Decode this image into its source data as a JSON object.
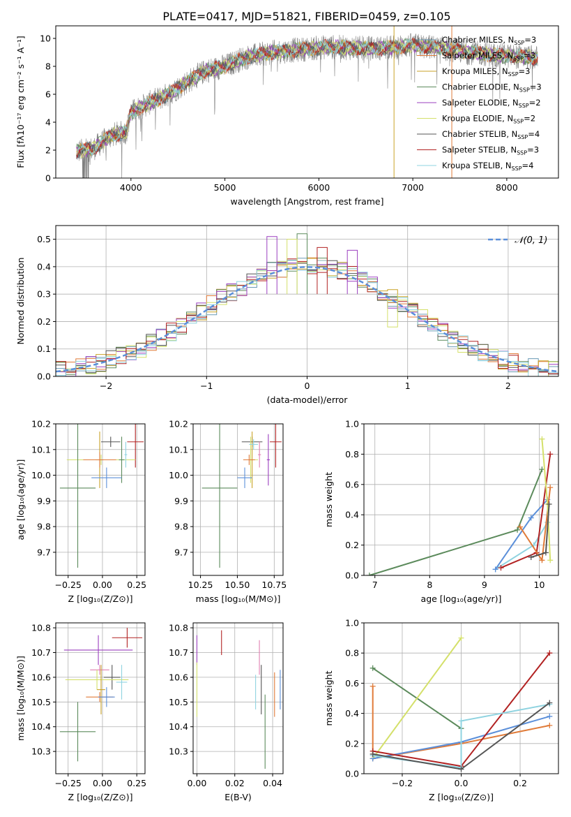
{
  "figure": {
    "title": "PLATE=0417, MJD=51821, FIBERID=0459, z=0.105"
  },
  "chart_data": [
    {
      "id": "spectrum",
      "type": "line",
      "xlabel": "wavelength [Angstrom, rest frame]",
      "ylabel": "Flux [fλ10⁻¹⁷ erg cm⁻² s⁻¹ A⁻¹]",
      "xlim": [
        3200,
        8550
      ],
      "ylim": [
        0,
        10.9
      ],
      "xticks": [
        4000,
        5000,
        6000,
        7000,
        8000
      ],
      "yticks": [
        0,
        2,
        4,
        6,
        8,
        10
      ],
      "legend_position": "top-right",
      "data_range": [
        3420,
        8330
      ],
      "continuum": {
        "x": [
          3420,
          3600,
          3800,
          3950,
          4000,
          4200,
          4400,
          4600,
          4800,
          5000,
          5200,
          5500,
          5800,
          6100,
          6400,
          6700,
          7000,
          7300,
          7600,
          7900,
          8100,
          8330
        ],
        "y": [
          1.9,
          2.1,
          3.1,
          3.3,
          4.7,
          5.4,
          6.0,
          6.9,
          7.7,
          8.0,
          8.6,
          9.0,
          9.2,
          9.4,
          9.3,
          9.3,
          9.5,
          9.3,
          9.0,
          8.8,
          8.7,
          8.6
        ]
      },
      "series": [
        {
          "name": "Chabrier MILES, N_SSP=3",
          "label_main": "Chabrier MILES, N",
          "label_sub": "SSP",
          "label_tail": "=3",
          "color": "#6a9ab5"
        },
        {
          "name": "Salpeter MILES, N_SSP=3",
          "label_main": "Salpeter MILES, N",
          "label_sub": "SSP",
          "label_tail": "=3",
          "color": "#e07b39"
        },
        {
          "name": "Kroupa MILES, N_SSP=3",
          "label_main": "Kroupa MILES, N",
          "label_sub": "SSP",
          "label_tail": "=3",
          "color": "#c9a227"
        },
        {
          "name": "Chabrier ELODIE, N_SSP=3",
          "label_main": "Chabrier ELODIE, N",
          "label_sub": "SSP",
          "label_tail": "=3",
          "color": "#5b8a5b"
        },
        {
          "name": "Salpeter ELODIE, N_SSP=2",
          "label_main": "Salpeter ELODIE, N",
          "label_sub": "SSP",
          "label_tail": "=2",
          "color": "#9b3fbf"
        },
        {
          "name": "Kroupa ELODIE, N_SSP=2",
          "label_main": "Kroupa ELODIE, N",
          "label_sub": "SSP",
          "label_tail": "=2",
          "color": "#d4e06a"
        },
        {
          "name": "Chabrier STELIB, N_SSP=4",
          "label_main": "Chabrier STELIB, N",
          "label_sub": "SSP",
          "label_tail": "=4",
          "color": "#555555"
        },
        {
          "name": "Salpeter STELIB, N_SSP=3",
          "label_main": "Salpeter STELIB, N",
          "label_sub": "SSP",
          "label_tail": "=3",
          "color": "#b22222"
        },
        {
          "name": "Kroupa STELIB, N_SSP=4",
          "label_main": "Kroupa STELIB, N",
          "label_sub": "SSP",
          "label_tail": "=4",
          "color": "#8fd3e0"
        }
      ]
    },
    {
      "id": "residuals",
      "type": "histogram",
      "xlabel": "(data-model)/error",
      "ylabel": "Normed distribution",
      "xlim": [
        -2.5,
        2.5
      ],
      "ylim": [
        0,
        0.55
      ],
      "xticks": [
        -2,
        -1,
        0,
        1,
        2
      ],
      "yticks": [
        0.0,
        0.1,
        0.2,
        0.3,
        0.4,
        0.5
      ],
      "grid": true,
      "bin_width": 0.1,
      "reference_curve": {
        "name": "N(0,1)",
        "label": "𝒩(0, 1)",
        "color": "#5b8fd9",
        "style": "dashed"
      },
      "legend_position": "top-right",
      "series_colors": [
        "#6a9ab5",
        "#e07b39",
        "#c9a227",
        "#5b8a5b",
        "#9b3fbf",
        "#d4e06a",
        "#555555",
        "#b22222",
        "#8fd3e0"
      ],
      "peak_bins": [
        {
          "x": -0.05,
          "y": 0.52,
          "color": "#5b8a5b"
        },
        {
          "x": -0.35,
          "y": 0.51,
          "color": "#9b3fbf"
        },
        {
          "x": -0.15,
          "y": 0.5,
          "color": "#d4e06a"
        },
        {
          "x": 0.15,
          "y": 0.47,
          "color": "#b22222"
        },
        {
          "x": 0.45,
          "y": 0.46,
          "color": "#9b3fbf"
        },
        {
          "x": 0.85,
          "y": 0.18,
          "color": "#d4e06a"
        }
      ]
    },
    {
      "id": "z-age",
      "type": "errorbar",
      "xlabel": "Z [log₁₀(Z/Z⊙)]",
      "ylabel": "age  [log₁₀(age/yr)]",
      "xlim": [
        -0.34,
        0.31
      ],
      "ylim": [
        9.61,
        10.2
      ],
      "xticks": [
        -0.25,
        0.0,
        0.25
      ],
      "xticklabels": [
        "−0.25",
        "0.00",
        "0.25"
      ],
      "yticks": [
        9.7,
        9.8,
        9.9,
        10.0,
        10.1,
        10.2
      ],
      "grid": true,
      "points": [
        {
          "x": 0.06,
          "xerr": 0.07,
          "y": 10.13,
          "yerr": 0.02,
          "color": "#555555"
        },
        {
          "x": 0.24,
          "xerr": 0.06,
          "y": 10.13,
          "yerr": 0.1,
          "color": "#b22222"
        },
        {
          "x": -0.02,
          "xerr": 0.03,
          "y": 10.06,
          "yerr": 0.11,
          "color": "#c9a227"
        },
        {
          "x": -0.01,
          "xerr": 0.25,
          "y": 10.06,
          "yerr": 0.02,
          "color": "#d4e06a"
        },
        {
          "x": -0.02,
          "xerr": 0.12,
          "y": 10.06,
          "yerr": 0.03,
          "color": "#e07b39"
        },
        {
          "x": 0.14,
          "xerr": 0.02,
          "y": 10.06,
          "yerr": 0.09,
          "color": "#5b8a5b"
        },
        {
          "x": 0.03,
          "xerr": 0.11,
          "y": 9.99,
          "yerr": 0.04,
          "color": "#5b8fd9"
        },
        {
          "x": 0.17,
          "xerr": 0.01,
          "y": 10.08,
          "yerr": 0.05,
          "color": "#8fd3e0"
        },
        {
          "x": -0.18,
          "xerr": 0.13,
          "y": 9.95,
          "yerr": 0.31,
          "color": "#5b8a5b"
        }
      ]
    },
    {
      "id": "mass-age",
      "type": "errorbar",
      "xlabel": "mass [log₁₀(M/M⊙)]",
      "ylabel": "",
      "xlim": [
        10.2,
        10.81
      ],
      "ylim": [
        9.61,
        10.2
      ],
      "xticks": [
        10.25,
        10.5,
        10.75
      ],
      "xticklabels": [
        "10.25",
        "10.50",
        "10.75"
      ],
      "yticks": [
        9.7,
        9.8,
        9.9,
        10.0,
        10.1,
        10.2
      ],
      "grid": true,
      "points": [
        {
          "x": 10.6,
          "xerr": 0.07,
          "y": 10.13,
          "yerr": 0.02,
          "color": "#555555"
        },
        {
          "x": 10.76,
          "xerr": 0.04,
          "y": 10.13,
          "yerr": 0.1,
          "color": "#b22222"
        },
        {
          "x": 10.6,
          "xerr": 0.02,
          "y": 10.06,
          "yerr": 0.11,
          "color": "#c9a227"
        },
        {
          "x": 10.59,
          "xerr": 0.05,
          "y": 10.06,
          "yerr": 0.09,
          "color": "#d4e06a"
        },
        {
          "x": 10.71,
          "xerr": 0.01,
          "y": 10.06,
          "yerr": 0.1,
          "color": "#9b3fbf"
        },
        {
          "x": 10.58,
          "xerr": 0.04,
          "y": 10.06,
          "yerr": 0.02,
          "color": "#e07b39"
        },
        {
          "x": 10.61,
          "xerr": 0.03,
          "y": 10.12,
          "yerr": 0.02,
          "color": "#8fd3e0"
        },
        {
          "x": 10.65,
          "xerr": 0.01,
          "y": 10.08,
          "yerr": 0.05,
          "color": "#e07fb0"
        },
        {
          "x": 10.55,
          "xerr": 0.05,
          "y": 9.99,
          "yerr": 0.04,
          "color": "#5b8fd9"
        },
        {
          "x": 10.38,
          "xerr": 0.12,
          "y": 9.95,
          "yerr": 0.31,
          "color": "#5b8a5b"
        }
      ]
    },
    {
      "id": "age-weight",
      "type": "line",
      "xlabel": "age  [log₁₀(age/yr)]",
      "ylabel": "mass weight",
      "xlim": [
        6.8,
        10.35
      ],
      "ylim": [
        0,
        1.0
      ],
      "xticks": [
        7,
        8,
        9,
        10
      ],
      "yticks": [
        0.0,
        0.2,
        0.4,
        0.6,
        0.8,
        1.0
      ],
      "grid": true,
      "series": [
        {
          "color": "#5b8a5b",
          "x": [
            6.9,
            9.6,
            10.05
          ],
          "y": [
            0.0,
            0.3,
            0.7
          ]
        },
        {
          "color": "#8fd3e0",
          "x": [
            9.2,
            9.9,
            10.15
          ],
          "y": [
            0.04,
            0.2,
            0.35
          ]
        },
        {
          "color": "#5b8fd9",
          "x": [
            9.2,
            9.85,
            10.15
          ],
          "y": [
            0.04,
            0.38,
            0.5
          ]
        },
        {
          "color": "#b22222",
          "x": [
            9.3,
            9.95,
            10.2
          ],
          "y": [
            0.05,
            0.15,
            0.8
          ]
        },
        {
          "color": "#e07b39",
          "x": [
            9.65,
            10.05,
            10.2
          ],
          "y": [
            0.32,
            0.1,
            0.58
          ]
        },
        {
          "color": "#d4e06a",
          "x": [
            10.05,
            10.15,
            10.2
          ],
          "y": [
            0.9,
            0.47,
            0.1
          ]
        },
        {
          "color": "#555555",
          "x": [
            9.85,
            10.12,
            10.18
          ],
          "y": [
            0.12,
            0.15,
            0.47
          ]
        }
      ]
    },
    {
      "id": "z-mass",
      "type": "errorbar",
      "xlabel": "Z [log₁₀(Z/Z⊙)]",
      "ylabel": "mass [log₁₀(M/M⊙)]",
      "xlim": [
        -0.34,
        0.31
      ],
      "ylim": [
        10.21,
        10.82
      ],
      "xticks": [
        -0.25,
        0.0,
        0.25
      ],
      "xticklabels": [
        "−0.25",
        "0.00",
        "0.25"
      ],
      "yticks": [
        10.3,
        10.4,
        10.5,
        10.6,
        10.7,
        10.8
      ],
      "grid": true,
      "points": [
        {
          "x": 0.18,
          "xerr": 0.11,
          "y": 10.76,
          "yerr": 0.04,
          "color": "#b22222"
        },
        {
          "x": -0.03,
          "xerr": 0.25,
          "y": 10.71,
          "yerr": 0.06,
          "color": "#9b3fbf"
        },
        {
          "x": -0.02,
          "xerr": 0.07,
          "y": 10.63,
          "yerr": 0.02,
          "color": "#e07fb0"
        },
        {
          "x": 0.07,
          "xerr": 0.06,
          "y": 10.6,
          "yerr": 0.05,
          "color": "#555555"
        },
        {
          "x": -0.04,
          "xerr": 0.23,
          "y": 10.59,
          "yerr": 0.04,
          "color": "#d4e06a"
        },
        {
          "x": -0.01,
          "xerr": 0.03,
          "y": 10.55,
          "yerr": 0.1,
          "color": "#c9a227"
        },
        {
          "x": -0.02,
          "xerr": 0.1,
          "y": 10.52,
          "yerr": 0.02,
          "color": "#e07b39"
        },
        {
          "x": 0.03,
          "xerr": 0.06,
          "y": 10.52,
          "yerr": 0.04,
          "color": "#5b8fd9"
        },
        {
          "x": 0.14,
          "xerr": 0.04,
          "y": 10.58,
          "yerr": 0.07,
          "color": "#8fd3e0"
        },
        {
          "x": -0.18,
          "xerr": 0.13,
          "y": 10.38,
          "yerr": 0.12,
          "color": "#5b8a5b"
        }
      ]
    },
    {
      "id": "ebv-mass",
      "type": "errorbar",
      "xlabel": "E(B-V)",
      "ylabel": "",
      "xlim": [
        -0.002,
        0.0455
      ],
      "ylim": [
        10.21,
        10.82
      ],
      "xticks": [
        0.0,
        0.02,
        0.04
      ],
      "xticklabels": [
        "0.00",
        "0.02",
        "0.04"
      ],
      "yticks": [
        10.3,
        10.4,
        10.5,
        10.6,
        10.7,
        10.8
      ],
      "grid": true,
      "points": [
        {
          "x": 0.0,
          "y": 10.71,
          "yerr": 0.06,
          "color": "#9b3fbf"
        },
        {
          "x": 0.0,
          "y": 10.55,
          "yerr": 0.11,
          "color": "#d4e06a"
        },
        {
          "x": 0.013,
          "y": 10.74,
          "yerr": 0.05,
          "color": "#b22222"
        },
        {
          "x": 0.033,
          "y": 10.68,
          "yerr": 0.07,
          "color": "#e07fb0"
        },
        {
          "x": 0.034,
          "y": 10.55,
          "yerr": 0.1,
          "color": "#555555"
        },
        {
          "x": 0.031,
          "y": 10.54,
          "yerr": 0.07,
          "color": "#8fd3e0"
        },
        {
          "x": 0.036,
          "y": 10.38,
          "yerr": 0.15,
          "color": "#5b8a5b"
        },
        {
          "x": 0.041,
          "y": 10.53,
          "yerr": 0.09,
          "color": "#e07b39"
        },
        {
          "x": 0.044,
          "y": 10.55,
          "yerr": 0.08,
          "color": "#5b8fd9"
        }
      ]
    },
    {
      "id": "z-weight",
      "type": "line",
      "xlabel": "Z [log₁₀(Z/Z⊙)]",
      "ylabel": "mass weight",
      "xlim": [
        -0.33,
        0.33
      ],
      "ylim": [
        0,
        1.0
      ],
      "xticks": [
        -0.2,
        0.0,
        0.2
      ],
      "xticklabels": [
        "−0.2",
        "0.0",
        "0.2"
      ],
      "yticks": [
        0.0,
        0.2,
        0.4,
        0.6,
        0.8,
        1.0
      ],
      "grid": true,
      "series": [
        {
          "color": "#5b8a5b",
          "x": [
            -0.3,
            0.0
          ],
          "y": [
            0.7,
            0.3
          ]
        },
        {
          "color": "#d4e06a",
          "x": [
            -0.3,
            0.0
          ],
          "y": [
            0.1,
            0.9
          ]
        },
        {
          "color": "#e07b39",
          "x": [
            -0.3,
            -0.3,
            0.0,
            0.3
          ],
          "y": [
            0.58,
            0.1,
            0.2,
            0.32
          ]
        },
        {
          "color": "#5b8fd9",
          "x": [
            -0.3,
            0.0,
            0.3
          ],
          "y": [
            0.1,
            0.21,
            0.38
          ]
        },
        {
          "color": "#b22222",
          "x": [
            -0.3,
            0.0,
            0.3
          ],
          "y": [
            0.15,
            0.05,
            0.8
          ]
        },
        {
          "color": "#8fd3e0",
          "x": [
            -0.3,
            0.0,
            0.0,
            0.3
          ],
          "y": [
            0.12,
            0.04,
            0.35,
            0.46
          ]
        },
        {
          "color": "#555555",
          "x": [
            -0.3,
            0.0,
            0.3
          ],
          "y": [
            0.13,
            0.03,
            0.47
          ]
        }
      ]
    }
  ]
}
